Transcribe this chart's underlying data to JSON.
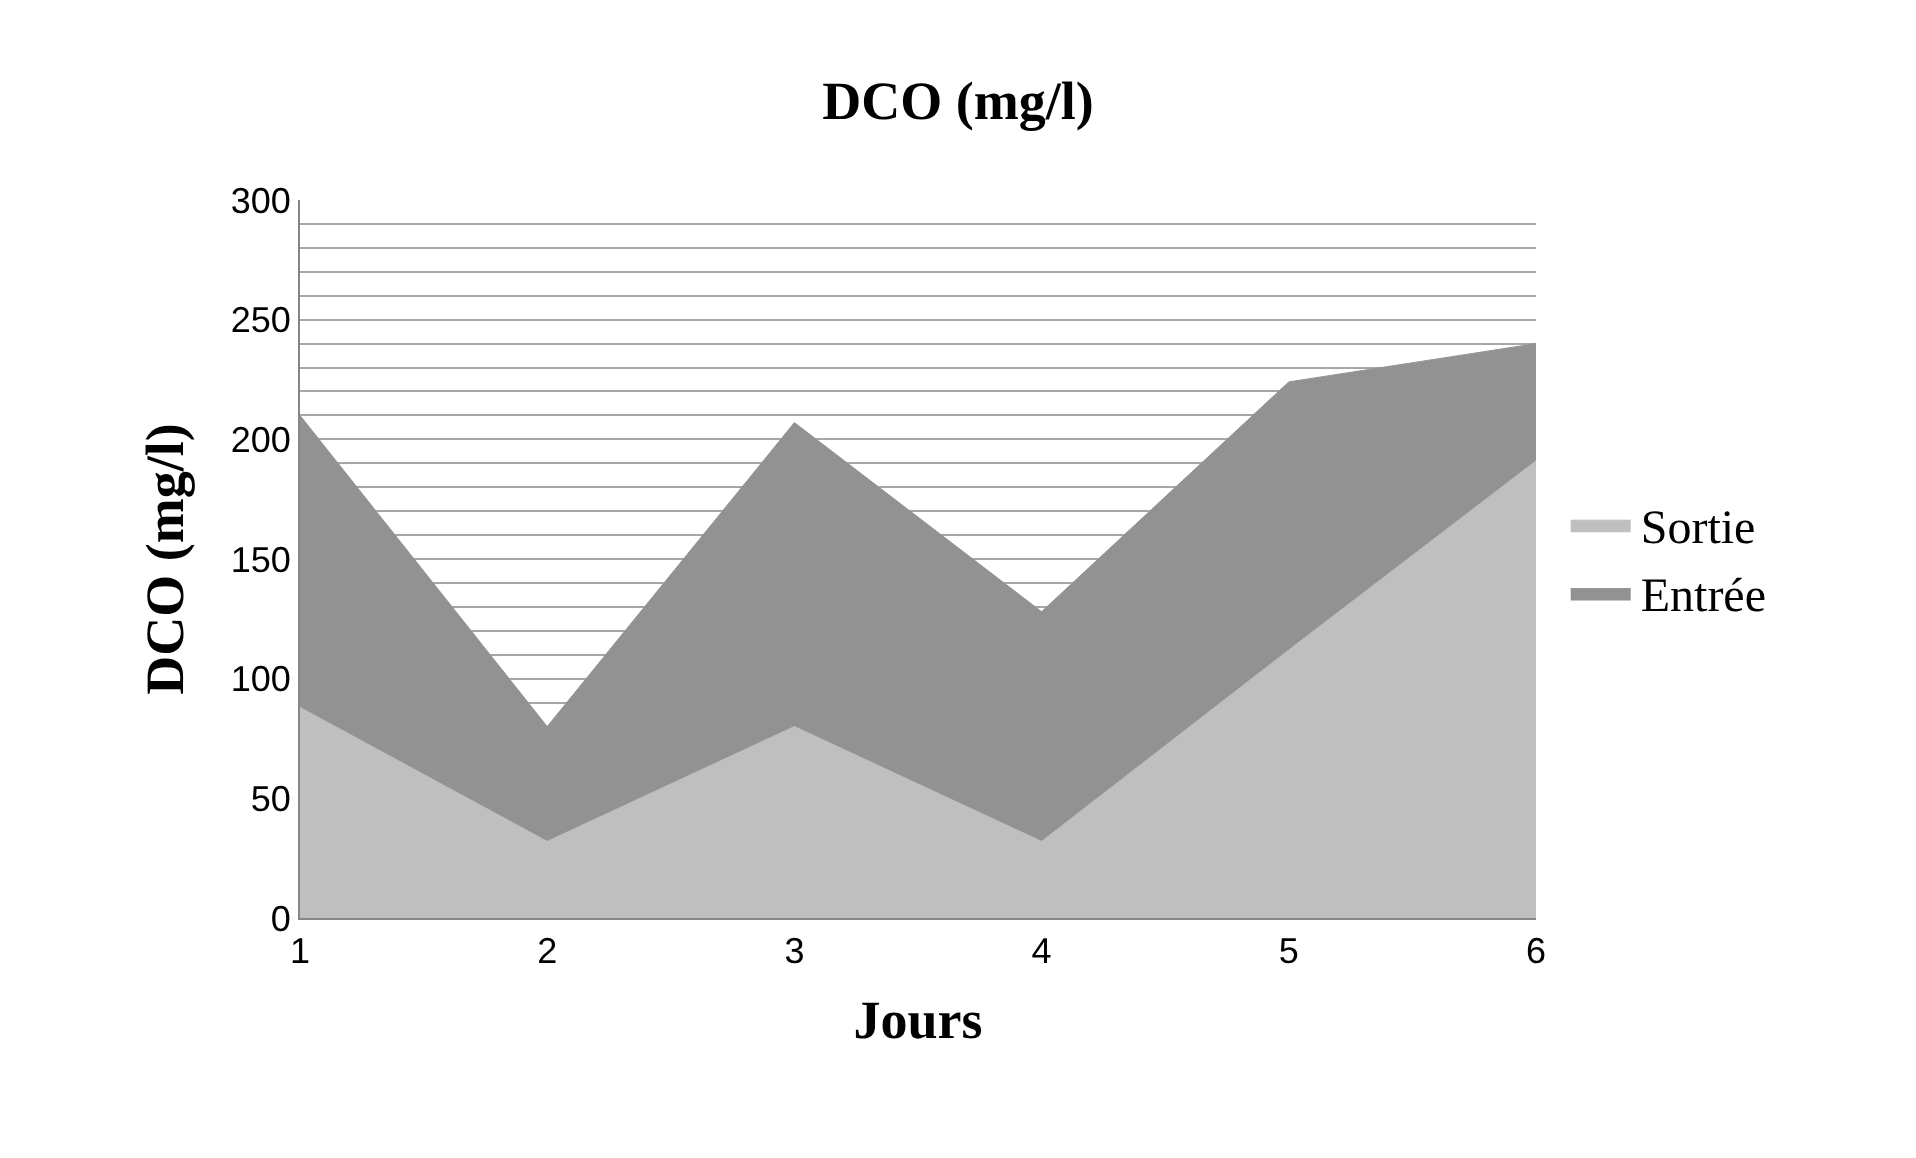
{
  "chart_data": {
    "type": "area",
    "title": "DCO (mg/l)",
    "xlabel": "Jours",
    "ylabel": "DCO (mg/l)",
    "x": [
      1,
      2,
      3,
      4,
      5,
      6
    ],
    "series": [
      {
        "name": "Entrée",
        "color": "#929292",
        "values": [
          210,
          80,
          207,
          128,
          224,
          240
        ]
      },
      {
        "name": "Sortie",
        "color": "#bfbfbf",
        "values": [
          88,
          32,
          80,
          32,
          112,
          191
        ]
      }
    ],
    "xlim": [
      1,
      6
    ],
    "xticks": [
      1,
      2,
      3,
      4,
      5,
      6
    ],
    "ylim": [
      0,
      300
    ],
    "yticks": [
      0,
      50,
      {
        "value": 80,
        "label": null
      },
      {
        "value": 90,
        "label": null
      },
      100,
      {
        "value": 110,
        "label": null
      },
      {
        "value": 120,
        "label": null
      },
      {
        "value": 130,
        "label": null
      },
      {
        "value": 140,
        "label": null
      },
      150,
      {
        "value": 160,
        "label": null
      },
      {
        "value": 170,
        "label": null
      },
      {
        "value": 180,
        "label": null
      },
      {
        "value": 190,
        "label": null
      },
      200,
      {
        "value": 210,
        "label": null
      },
      {
        "value": 220,
        "label": null
      },
      {
        "value": 230,
        "label": null
      },
      {
        "value": 240,
        "label": null
      },
      250,
      {
        "value": 260,
        "label": null
      },
      {
        "value": 270,
        "label": null
      },
      {
        "value": 280,
        "label": null
      },
      {
        "value": 290,
        "label": null
      },
      300
    ],
    "grid": "y",
    "legend": "right"
  }
}
